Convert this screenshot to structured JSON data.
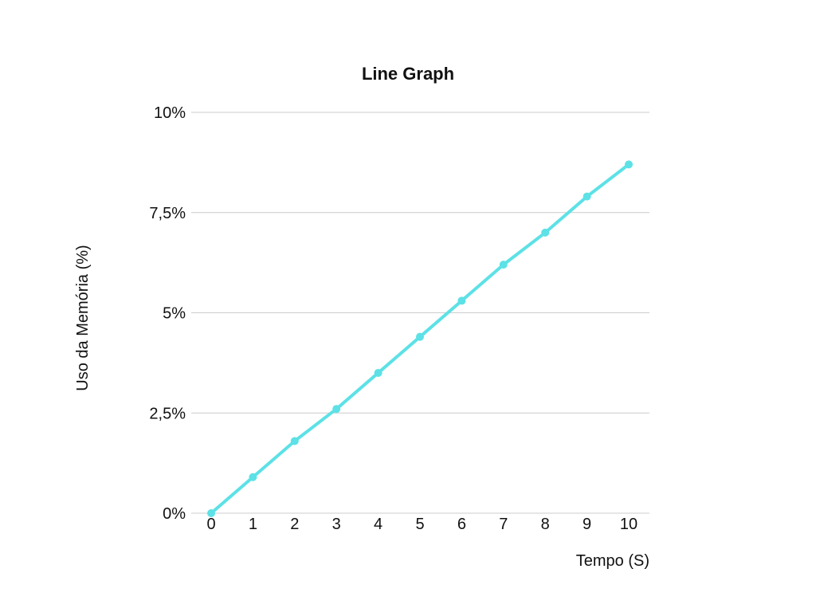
{
  "chart_data": {
    "type": "line",
    "title": "Line Graph",
    "xlabel": "Tempo (S)",
    "ylabel": "Uso da Memória (%)",
    "x": [
      0,
      1,
      2,
      3,
      4,
      5,
      6,
      7,
      8,
      9,
      10
    ],
    "x_tick_labels": [
      "0",
      "1",
      "2",
      "3",
      "4",
      "5",
      "6",
      "7",
      "8",
      "9",
      "10"
    ],
    "y_ticks": [
      0,
      2.5,
      5,
      7.5,
      10
    ],
    "y_tick_labels": [
      "0%",
      "2,5%",
      "5%",
      "7,5%",
      "10%"
    ],
    "ylim": [
      0,
      10
    ],
    "grid": true,
    "series": [
      {
        "color": "#5ce1e6",
        "values": [
          0,
          0.9,
          1.8,
          2.6,
          3.5,
          4.4,
          5.3,
          6.2,
          7.0,
          7.9,
          8.7
        ]
      }
    ]
  }
}
